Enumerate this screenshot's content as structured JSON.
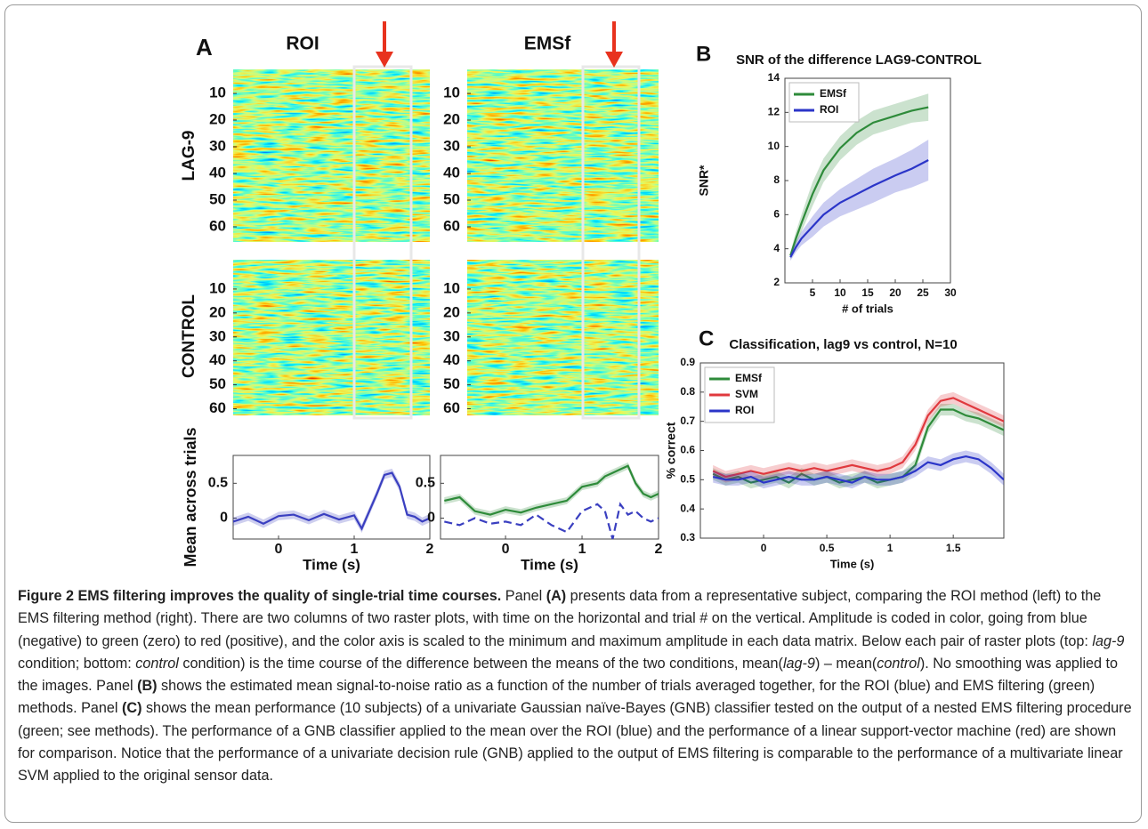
{
  "panel_a": {
    "label": "A",
    "columns": [
      "ROI",
      "EMSf"
    ],
    "rows": [
      "LAG-9",
      "CONTROL"
    ],
    "raster_yticks": [
      10,
      20,
      30,
      40,
      50,
      60
    ],
    "raster_ylim": [
      0,
      65
    ]
  },
  "chart_data": [
    {
      "type": "line",
      "panel": "B",
      "title": "SNR of the difference LAG9-CONTROL",
      "xlabel": "# of trials",
      "ylabel": "SNR*",
      "x": [
        1,
        2,
        3,
        5,
        7,
        10,
        13,
        16,
        20,
        23,
        26
      ],
      "xlim": [
        0,
        30
      ],
      "xticks": [
        5,
        10,
        15,
        20,
        25,
        30
      ],
      "ylim": [
        2,
        14
      ],
      "yticks": [
        2,
        4,
        6,
        8,
        10,
        12,
        14
      ],
      "legend": "upper left",
      "series": [
        {
          "name": "EMSf",
          "color": "#2e8b3a",
          "values": [
            3.6,
            4.6,
            5.5,
            7.2,
            8.6,
            9.9,
            10.8,
            11.4,
            11.8,
            12.1,
            12.3
          ],
          "error": [
            0.2,
            0.4,
            0.5,
            0.7,
            0.7,
            0.7,
            0.7,
            0.7,
            0.7,
            0.7,
            0.8
          ]
        },
        {
          "name": "ROI",
          "color": "#2b35c8",
          "values": [
            3.5,
            4.1,
            4.6,
            5.3,
            6.0,
            6.7,
            7.2,
            7.7,
            8.3,
            8.7,
            9.2
          ],
          "error": [
            0.2,
            0.3,
            0.4,
            0.6,
            0.7,
            0.8,
            0.9,
            1.0,
            1.0,
            1.1,
            1.2
          ]
        }
      ]
    },
    {
      "type": "line",
      "panel": "C",
      "title": "Classification, lag9 vs control, N=10",
      "xlabel": "Time (s)",
      "ylabel": "% correct",
      "x": [
        -0.4,
        -0.3,
        -0.2,
        -0.1,
        0,
        0.1,
        0.2,
        0.3,
        0.4,
        0.5,
        0.6,
        0.7,
        0.8,
        0.9,
        1,
        1.1,
        1.2,
        1.3,
        1.4,
        1.5,
        1.6,
        1.7,
        1.8,
        1.9
      ],
      "xlim": [
        -0.5,
        1.9
      ],
      "xticks": [
        0,
        0.5,
        1,
        1.5
      ],
      "ylim": [
        0.3,
        0.9
      ],
      "yticks": [
        0.3,
        0.4,
        0.5,
        0.6,
        0.7,
        0.8,
        0.9
      ],
      "legend": "upper left",
      "series": [
        {
          "name": "EMSf",
          "color": "#2e8b3a",
          "values": [
            0.52,
            0.5,
            0.51,
            0.49,
            0.5,
            0.51,
            0.49,
            0.52,
            0.5,
            0.51,
            0.49,
            0.5,
            0.51,
            0.49,
            0.5,
            0.51,
            0.55,
            0.68,
            0.74,
            0.74,
            0.72,
            0.71,
            0.69,
            0.67
          ],
          "error": 0.02
        },
        {
          "name": "SVM",
          "color": "#e0393e",
          "values": [
            0.53,
            0.51,
            0.52,
            0.53,
            0.52,
            0.53,
            0.54,
            0.53,
            0.54,
            0.53,
            0.54,
            0.55,
            0.54,
            0.53,
            0.54,
            0.56,
            0.62,
            0.72,
            0.77,
            0.78,
            0.76,
            0.74,
            0.72,
            0.7
          ],
          "error": 0.02
        },
        {
          "name": "ROI",
          "color": "#2b35c8",
          "values": [
            0.51,
            0.5,
            0.5,
            0.51,
            0.49,
            0.5,
            0.51,
            0.5,
            0.5,
            0.51,
            0.5,
            0.49,
            0.51,
            0.5,
            0.5,
            0.51,
            0.53,
            0.56,
            0.55,
            0.57,
            0.58,
            0.57,
            0.54,
            0.5
          ],
          "error": 0.02
        }
      ]
    },
    {
      "type": "line",
      "xlabel": "Time (s)",
      "ylabel": "Mean across trials",
      "x": [
        -0.6,
        -0.4,
        -0.2,
        0,
        0.2,
        0.4,
        0.6,
        0.8,
        1.0,
        1.1,
        1.2,
        1.3,
        1.4,
        1.5,
        1.6,
        1.7,
        1.8,
        1.9,
        2.0
      ],
      "xlim": [
        -0.6,
        2
      ],
      "xticks": [
        0,
        1,
        2
      ],
      "ylim": [
        -0.3,
        0.9
      ],
      "yticks": [
        0,
        0.5
      ],
      "series": [
        {
          "color": "#3a3fc0",
          "values": [
            -0.05,
            0.02,
            -0.08,
            0.03,
            0.05,
            -0.03,
            0.06,
            -0.02,
            0.04,
            -0.15,
            0.1,
            0.35,
            0.62,
            0.65,
            0.45,
            0.05,
            0.02,
            -0.05,
            0.0
          ],
          "error": 0.06
        }
      ]
    },
    {
      "type": "line",
      "xlabel": "Time (s)",
      "x": [
        -0.8,
        -0.6,
        -0.4,
        -0.2,
        0,
        0.2,
        0.4,
        0.6,
        0.8,
        1.0,
        1.2,
        1.3,
        1.4,
        1.5,
        1.6,
        1.7,
        1.8,
        1.9,
        2.0
      ],
      "xlim": [
        -0.85,
        2
      ],
      "xticks": [
        0,
        1,
        2
      ],
      "ylim": [
        -0.3,
        0.9
      ],
      "yticks": [
        0,
        0.5
      ],
      "series": [
        {
          "color": "#2e8b3a",
          "values": [
            0.25,
            0.3,
            0.1,
            0.05,
            0.12,
            0.08,
            0.15,
            0.2,
            0.25,
            0.45,
            0.5,
            0.6,
            0.65,
            0.7,
            0.75,
            0.5,
            0.35,
            0.3,
            0.35
          ],
          "error": 0.05
        },
        {
          "color": "#3a3fc0",
          "dash": true,
          "values": [
            -0.05,
            -0.1,
            0,
            -0.08,
            -0.05,
            -0.1,
            0.05,
            -0.1,
            -0.2,
            0.1,
            0.2,
            0.1,
            -0.3,
            0.2,
            0.05,
            0.1,
            0.0,
            -0.05,
            0.0
          ]
        }
      ]
    }
  ],
  "caption": {
    "runs": [
      {
        "text": "Figure 2 EMS filtering improves the quality of single-trial time courses.",
        "style": "bold"
      },
      {
        "text": " Panel "
      },
      {
        "text": "(A)",
        "style": "bold"
      },
      {
        "text": " presents data from a representative subject, comparing the ROI method (left) to the EMS filtering method (right). There are two columns of two raster plots, with time on the horizontal and trial # on the vertical. Amplitude is coded in color, going from blue (negative) to green (zero) to red (positive), and the color axis is scaled to the minimum and maximum amplitude in each data matrix. Below each pair of raster plots (top: "
      },
      {
        "text": "lag-9",
        "style": "italic"
      },
      {
        "text": " condition; bottom: "
      },
      {
        "text": "control",
        "style": "italic"
      },
      {
        "text": " condition) is the time course of the difference between the means of the two conditions, mean("
      },
      {
        "text": "lag-9",
        "style": "italic"
      },
      {
        "text": ") – mean("
      },
      {
        "text": "control",
        "style": "italic"
      },
      {
        "text": "). No smoothing was applied to the images. Panel "
      },
      {
        "text": "(B)",
        "style": "bold"
      },
      {
        "text": " shows the estimated mean signal-to-noise ratio as a function of the number of trials averaged together, for the ROI (blue) and EMS filtering (green) methods. Panel "
      },
      {
        "text": "(C)",
        "style": "bold"
      },
      {
        "text": " shows the mean performance (10 subjects) of a univariate Gaussian naïve-Bayes (GNB) classifier tested on the output of a nested EMS filtering procedure (green; see methods). The performance of a GNB classifier applied to the mean over the ROI (blue) and the performance of a linear support-vector machine (red) are shown for comparison. Notice that the performance of a univariate decision rule (GNB) applied to the output of EMS filtering is comparable to the performance of a multivariate linear SVM applied to the original sensor data."
      }
    ]
  }
}
